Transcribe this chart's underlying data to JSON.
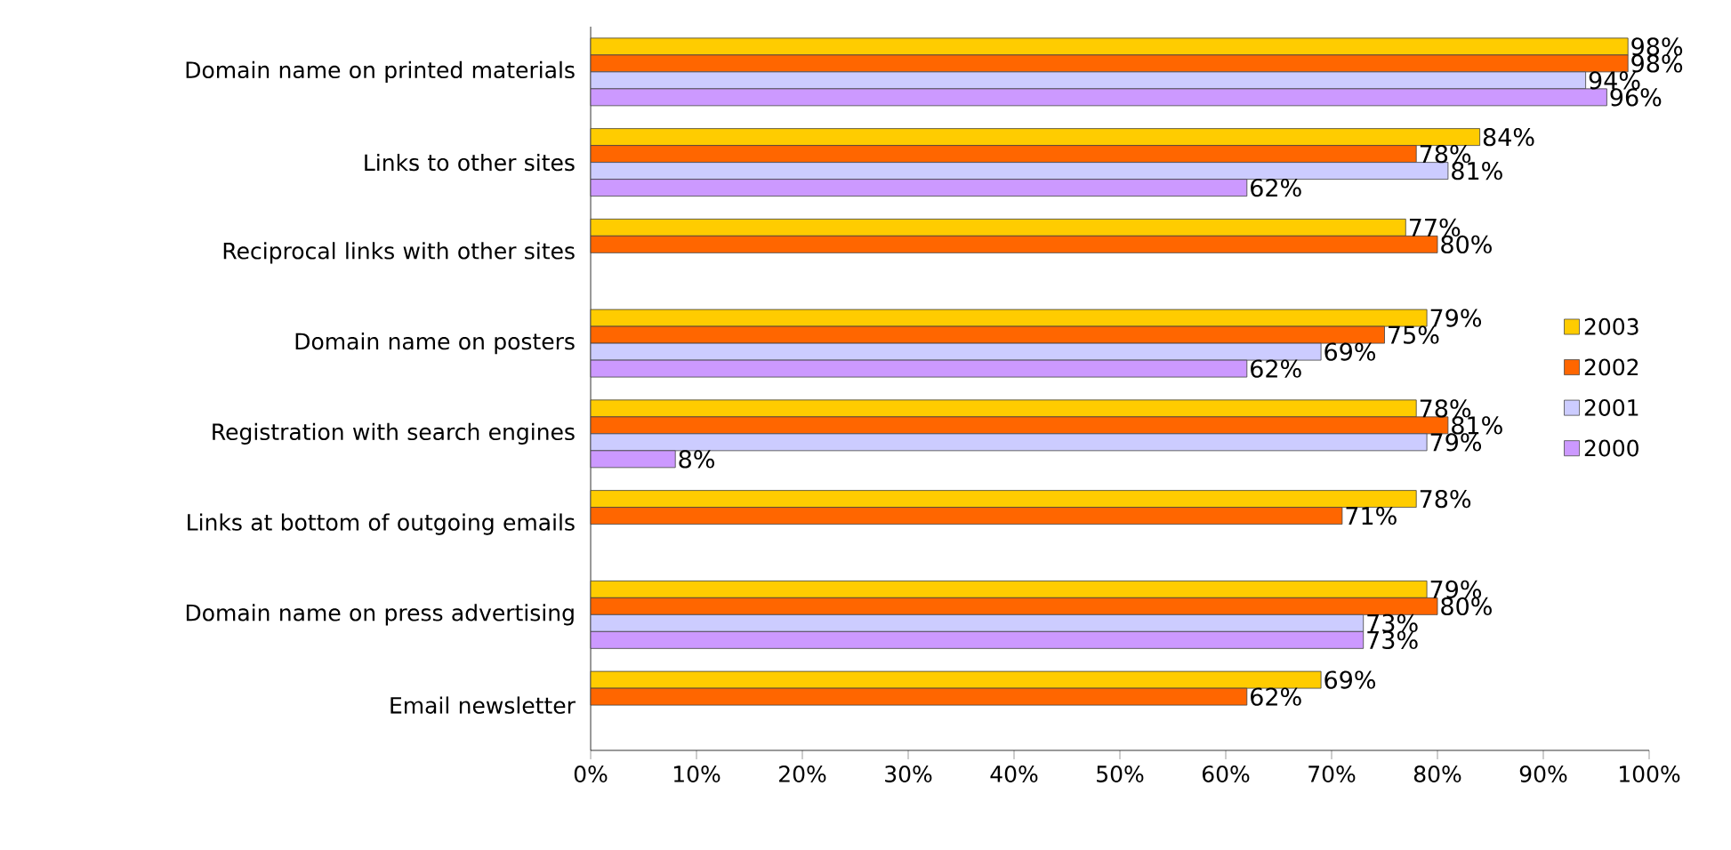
{
  "chart_data": {
    "type": "bar",
    "orientation": "horizontal",
    "categories": [
      "Domain name on printed materials",
      "Links to other sites",
      "Reciprocal links with other sites",
      "Domain name on posters",
      "Registration with search engines",
      "Links at bottom of outgoing emails",
      "Domain name on press advertising",
      "Email newsletter"
    ],
    "series": [
      {
        "name": "2003",
        "color": "#ffcc00",
        "values": [
          98,
          84,
          77,
          79,
          78,
          78,
          79,
          69
        ],
        "value_labels": [
          "98%",
          "84%",
          "77%",
          "79%",
          "78%",
          "78%",
          "79%",
          "69%"
        ]
      },
      {
        "name": "2002",
        "color": "#ff6600",
        "values": [
          98,
          78,
          80,
          75,
          81,
          71,
          80,
          62
        ],
        "value_labels": [
          "98%",
          "78%",
          "80%",
          "75%",
          "81%",
          "71%",
          "80%",
          "62%"
        ]
      },
      {
        "name": "2001",
        "color": "#ccccff",
        "values": [
          94,
          81,
          null,
          69,
          79,
          null,
          73,
          null
        ],
        "value_labels": [
          "94%",
          "81%",
          null,
          "69%",
          "79%",
          null,
          "73%",
          null
        ]
      },
      {
        "name": "2000",
        "color": "#cc99ff",
        "values": [
          96,
          62,
          null,
          62,
          8,
          null,
          73,
          null
        ],
        "value_labels": [
          "96%",
          "62%",
          null,
          "62%",
          "8%",
          null,
          "73%",
          null
        ]
      }
    ],
    "xlim": [
      0,
      100
    ],
    "xticks": [
      {
        "value": 0,
        "label": "0%"
      },
      {
        "value": 10,
        "label": "10%"
      },
      {
        "value": 20,
        "label": "20%"
      },
      {
        "value": 30,
        "label": "30%"
      },
      {
        "value": 40,
        "label": "40%"
      },
      {
        "value": 50,
        "label": "50%"
      },
      {
        "value": 60,
        "label": "60%"
      },
      {
        "value": 70,
        "label": "70%"
      },
      {
        "value": 80,
        "label": "80%"
      },
      {
        "value": 90,
        "label": "90%"
      },
      {
        "value": 100,
        "label": "100%"
      }
    ],
    "legend": "right",
    "grid": false
  }
}
